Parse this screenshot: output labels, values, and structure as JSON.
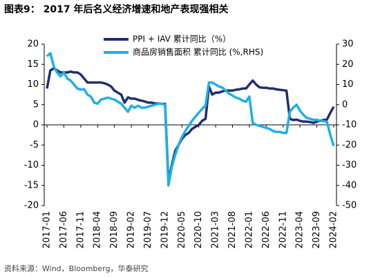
{
  "chart_data": {
    "type": "line",
    "title": "图表9：  2017 年后名义经济增速和地产表现强相关",
    "source": "资料来源：Wind，Bloomberg，华泰研究",
    "categories": [
      "2017-01",
      null,
      null,
      null,
      null,
      "2017-06",
      null,
      null,
      null,
      null,
      "2017-11",
      null,
      null,
      null,
      null,
      "2018-04",
      null,
      null,
      null,
      null,
      "2018-09",
      null,
      null,
      null,
      null,
      "2019-02",
      null,
      null,
      null,
      null,
      "2019-07",
      null,
      null,
      null,
      null,
      "2019-12",
      null,
      null,
      null,
      null,
      "2020-05",
      null,
      null,
      null,
      null,
      "2020-10",
      null,
      null,
      null,
      null,
      "2021-03",
      null,
      null,
      null,
      null,
      "2021-08",
      null,
      null,
      null,
      null,
      "2022-01",
      null,
      null,
      null,
      null,
      "2022-06",
      null,
      null,
      null,
      null,
      "2022-11",
      null,
      null,
      null,
      null,
      "2023-04",
      null,
      null,
      null,
      null,
      "2023-09",
      null,
      null,
      null,
      null,
      "2024-02"
    ],
    "series": [
      {
        "name": "PPI + IAV 累计同比（%）",
        "color": "#1f2e6e",
        "values": [
          9,
          13.5,
          14,
          13.5,
          13,
          13,
          13,
          13.2,
          13,
          13,
          12.5,
          11.5,
          10.5,
          10.5,
          10.5,
          10.5,
          10.5,
          10.3,
          10,
          9.5,
          8.5,
          8,
          7.5,
          5.5,
          6.8,
          6.5,
          6.5,
          6.2,
          6,
          5.8,
          5.5,
          5.5,
          5.3,
          5.3,
          5.2,
          5.2,
          -14,
          -10,
          -6.5,
          -5,
          -3.5,
          -2.5,
          -2,
          -1,
          -0.5,
          0,
          1,
          1.5,
          9.5,
          7.5,
          8,
          8,
          8.3,
          8.5,
          8.5,
          8.5,
          8.7,
          8.8,
          9,
          9,
          10,
          11,
          10,
          9.3,
          9.2,
          9.2,
          9,
          9,
          8.8,
          8.7,
          8.6,
          8.5,
          1.5,
          1.2,
          1.3,
          1,
          0.8,
          0.8,
          0.7,
          0.5,
          0.8,
          1,
          1.2,
          1.3,
          3,
          4.5
        ]
      },
      {
        "name": "商品房销售面积 累计同比 (%,RHS)",
        "color": "#1cb0e6",
        "axis": "y2",
        "values": [
          24,
          25.5,
          19,
          16,
          14,
          16,
          13,
          12,
          10,
          8,
          7.5,
          7.7,
          5,
          4,
          1,
          0.5,
          2.5,
          3,
          3.5,
          3,
          2.5,
          1.5,
          0.5,
          -1.5,
          -3.5,
          -0.5,
          -1.5,
          -0.5,
          -1.5,
          -1.5,
          -1,
          -0.5,
          0,
          0.5,
          0.5,
          -0.1,
          -40,
          -31,
          -25,
          -20,
          -16,
          -13,
          -10.5,
          -8,
          -6,
          -4,
          -2,
          -0.5,
          11,
          11,
          10,
          9,
          8.5,
          7,
          5.5,
          4.5,
          3.5,
          3,
          2,
          1.5,
          4,
          -9,
          -10,
          -10.5,
          -11,
          -11.5,
          -12,
          -13,
          -13.5,
          -13.5,
          -14,
          -14,
          -3.5,
          -1.5,
          0,
          -3,
          -5,
          -6.5,
          -7,
          -7.5,
          -7.5,
          -8,
          -8.2,
          -8.5,
          -15,
          -20.5
        ]
      }
    ],
    "ylim": [
      -20,
      20
    ],
    "yticks": [
      -20,
      -15,
      -10,
      -5,
      0,
      5,
      10,
      15,
      20
    ],
    "y2lim": [
      -50,
      30
    ],
    "y2ticks": [
      -50,
      -40,
      -30,
      -20,
      -10,
      0,
      10,
      20,
      30
    ]
  }
}
